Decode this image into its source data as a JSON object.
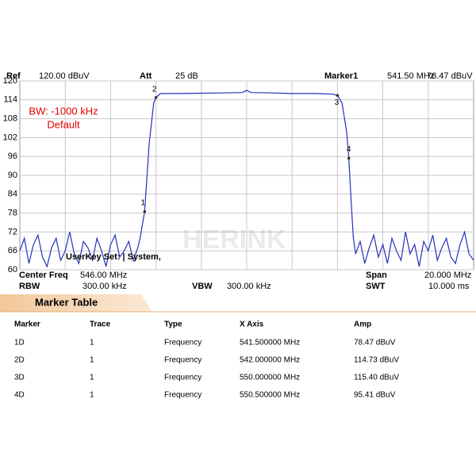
{
  "chart_data": {
    "type": "line",
    "header": {
      "ref_label": "Ref",
      "ref_value": "120.00 dBuV",
      "att_label": "Att",
      "att_value": "25 dB",
      "marker_label": "Marker1",
      "marker_x": "541.50 MHz",
      "marker_y": "78.47 dBuV"
    },
    "annotations": [
      "BW: -1000 kHz",
      "Default",
      "UserKey Set: | System,",
      "HERINK"
    ],
    "footer": {
      "center_label": "Center Freq",
      "center_value": "546.00 MHz",
      "span_label": "Span",
      "span_value": "20.000 MHz",
      "rbw_label": "RBW",
      "rbw_value": "300.00 kHz",
      "vbw_label": "VBW",
      "vbw_value": "300.00 kHz",
      "swt_label": "SWT",
      "swt_value": "10.000 ms"
    },
    "x": [
      536,
      536.2,
      536.4,
      536.6,
      536.8,
      537,
      537.2,
      537.4,
      537.6,
      537.8,
      538,
      538.2,
      538.4,
      538.6,
      538.8,
      539,
      539.2,
      539.4,
      539.6,
      539.8,
      540,
      540.2,
      540.4,
      540.6,
      540.8,
      541,
      541.2,
      541.3,
      541.5,
      541.7,
      541.9,
      542,
      542.2,
      543,
      544,
      545,
      545.8,
      546,
      546.2,
      547,
      548,
      549,
      549.8,
      550,
      550.2,
      550.4,
      550.5,
      550.6,
      550.7,
      550.8,
      551,
      551.2,
      551.4,
      551.6,
      551.8,
      552,
      552.2,
      552.4,
      552.6,
      552.8,
      553,
      553.2,
      553.4,
      553.6,
      553.8,
      554,
      554.2,
      554.4,
      554.6,
      554.8,
      555,
      555.2,
      555.4,
      555.6,
      555.8,
      556
    ],
    "values": [
      66,
      70,
      62,
      68,
      71,
      64,
      61,
      67,
      70,
      63,
      66,
      72,
      65,
      62,
      69,
      67,
      63,
      70,
      66,
      61,
      68,
      71,
      64,
      66,
      69,
      63,
      67,
      70,
      78.47,
      100,
      113,
      114.73,
      116,
      116,
      116.1,
      116.2,
      116.3,
      117,
      116.3,
      116.2,
      116,
      116,
      115.8,
      115.4,
      113,
      104,
      95.41,
      82,
      70,
      65,
      69,
      62,
      67,
      71,
      64,
      68,
      62,
      70,
      66,
      63,
      72,
      65,
      68,
      61,
      69,
      66,
      71,
      63,
      67,
      70,
      64,
      62,
      68,
      72,
      65,
      63
    ],
    "color": "#2233bb",
    "xlim": [
      536,
      556
    ],
    "ylim": [
      60,
      120
    ],
    "yticks": [
      60,
      66,
      72,
      78,
      84,
      90,
      96,
      102,
      108,
      114,
      120
    ],
    "grid": true,
    "markers": [
      {
        "label": "1",
        "x": 541.5,
        "y": 78.47
      },
      {
        "label": "2",
        "x": 542.0,
        "y": 114.73
      },
      {
        "label": "3",
        "x": 550.0,
        "y": 115.4
      },
      {
        "label": "4",
        "x": 550.5,
        "y": 95.41
      }
    ]
  },
  "marker_table": {
    "title": "Marker Table",
    "columns": [
      "Marker",
      "Trace",
      "Type",
      "X Axis",
      "Amp"
    ],
    "rows": [
      [
        "1D",
        "1",
        "Frequency",
        "541.500000 MHz",
        "78.47 dBuV"
      ],
      [
        "2D",
        "1",
        "Frequency",
        "542.000000 MHz",
        "114.73 dBuV"
      ],
      [
        "3D",
        "1",
        "Frequency",
        "550.000000 MHz",
        "115.40 dBuV"
      ],
      [
        "4D",
        "1",
        "Frequency",
        "550.500000 MHz",
        "95.41 dBuV"
      ]
    ]
  }
}
